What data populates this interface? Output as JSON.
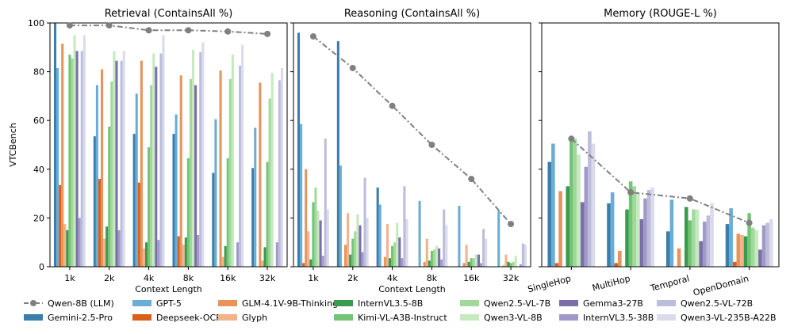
{
  "figure": {
    "ylabel": "VTCBench",
    "legend_entries": [
      {
        "name": "Qwen-8B (LLM)",
        "color": "#808080",
        "kind": "line"
      },
      {
        "name": "Gemini-2.5-Pro",
        "color": "#3b7dab"
      },
      {
        "name": "GPT-5",
        "color": "#6aaed6"
      },
      {
        "name": "Deepseek-OCR",
        "color": "#d95f1c"
      },
      {
        "name": "GLM-4.1V-9B-Thinking",
        "color": "#e8935a"
      },
      {
        "name": "Glyph",
        "color": "#f2b38a"
      },
      {
        "name": "InternVL3.5-8B",
        "color": "#3a9a4e"
      },
      {
        "name": "Kimi-VL-A3B-Instruct",
        "color": "#74c476"
      },
      {
        "name": "Qwen2.5-VL-7B",
        "color": "#a1d99b"
      },
      {
        "name": "Qwen3-VL-8B",
        "color": "#c7e9c0"
      },
      {
        "name": "Gemma3-27B",
        "color": "#7a6fa8"
      },
      {
        "name": "InternVL3.5-38B",
        "color": "#a19ac8"
      },
      {
        "name": "Qwen2.5-VL-72B",
        "color": "#bcbddc"
      },
      {
        "name": "Qwen3-VL-235B-A22B",
        "color": "#dadaeb"
      }
    ]
  },
  "chart_data": [
    {
      "type": "bar",
      "title": "Retrieval (ContainsAll %)",
      "xlabel": "Context Length",
      "ylabel": "VTCBench",
      "ylim": [
        0,
        100
      ],
      "yticks": [
        0,
        20,
        40,
        60,
        80,
        100
      ],
      "categories": [
        "1k",
        "2k",
        "4k",
        "8k",
        "16k",
        "32k"
      ],
      "line": {
        "name": "Qwen-8B (LLM)",
        "values": [
          99,
          99,
          97,
          97,
          96.5,
          95.5
        ]
      },
      "series": [
        {
          "name": "Gemini-2.5-Pro",
          "values": [
            100,
            53.5,
            54.5,
            54.5,
            38.5,
            40.5
          ]
        },
        {
          "name": "GPT-5",
          "values": [
            81.5,
            74.5,
            71,
            62.5,
            60.5,
            57
          ]
        },
        {
          "name": "Deepseek-OCR",
          "values": [
            33.5,
            36,
            34.5,
            12.5,
            0,
            0
          ]
        },
        {
          "name": "GLM-4.1V-9B-Thinking",
          "values": [
            91.5,
            81,
            84.5,
            78.5,
            80.5,
            75.5
          ]
        },
        {
          "name": "Glyph",
          "values": [
            17.5,
            11.5,
            7.5,
            9,
            4,
            2.5
          ]
        },
        {
          "name": "InternVL3.5-8B",
          "values": [
            15,
            16.5,
            10,
            12,
            8.5,
            8
          ]
        },
        {
          "name": "Kimi-VL-A3B-Instruct",
          "values": [
            87,
            57.5,
            49,
            44.5,
            44.5,
            43
          ]
        },
        {
          "name": "Qwen2.5-VL-7B",
          "values": [
            85.5,
            76,
            74.5,
            77,
            77,
            69
          ]
        },
        {
          "name": "Qwen3-VL-8B",
          "values": [
            95,
            88.5,
            87.5,
            89,
            87,
            79.5
          ]
        },
        {
          "name": "Gemma3-27B",
          "values": [
            88.5,
            84.5,
            82,
            74.5,
            0,
            0
          ]
        },
        {
          "name": "InternVL3.5-38B",
          "values": [
            20,
            15,
            11,
            13,
            10,
            10
          ]
        },
        {
          "name": "Qwen2.5-VL-72B",
          "values": [
            88.5,
            84.5,
            87.5,
            88,
            82.5,
            76.5
          ]
        },
        {
          "name": "Qwen3-VL-235B-A22B",
          "values": [
            95,
            88.5,
            95,
            92,
            91,
            81.5
          ]
        }
      ]
    },
    {
      "type": "bar",
      "title": "Reasoning (ContainsAll %)",
      "xlabel": "Context Length",
      "ylim": [
        0,
        100
      ],
      "categories": [
        "1k",
        "2k",
        "4k",
        "8k",
        "16k",
        "32k"
      ],
      "line": {
        "name": "Qwen-8B (LLM)",
        "values": [
          94.5,
          81.5,
          66,
          50,
          36,
          17.5
        ]
      },
      "series": [
        {
          "name": "Gemini-2.5-Pro",
          "values": [
            96,
            92.5,
            32.5,
            0,
            0,
            0
          ]
        },
        {
          "name": "GPT-5",
          "values": [
            58.5,
            41.5,
            25.5,
            27,
            25,
            23
          ]
        },
        {
          "name": "Deepseek-OCR",
          "values": [
            1.5,
            0,
            0,
            0,
            0,
            0
          ]
        },
        {
          "name": "GLM-4.1V-9B-Thinking",
          "values": [
            40,
            9,
            4,
            2,
            1.5,
            0.5
          ]
        },
        {
          "name": "Glyph",
          "values": [
            14.5,
            22,
            17.5,
            11.5,
            9,
            5
          ]
        },
        {
          "name": "InternVL3.5-8B",
          "values": [
            3,
            5,
            3.5,
            2.5,
            2,
            2
          ]
        },
        {
          "name": "Kimi-VL-A3B-Instruct",
          "values": [
            26.5,
            11.5,
            8.5,
            6.5,
            3.5,
            1.5
          ]
        },
        {
          "name": "Qwen2.5-VL-7B",
          "values": [
            32.5,
            14.5,
            10,
            7,
            3.5,
            2
          ]
        },
        {
          "name": "Qwen3-VL-8B",
          "values": [
            23,
            21.5,
            18,
            8.5,
            5,
            4.5
          ]
        },
        {
          "name": "Gemma3-27B",
          "values": [
            19,
            17,
            12,
            7.5,
            5,
            0
          ]
        },
        {
          "name": "InternVL3.5-38B",
          "values": [
            4.5,
            6,
            3.5,
            3,
            1.5,
            1
          ]
        },
        {
          "name": "Qwen2.5-VL-72B",
          "values": [
            52.5,
            36.5,
            33,
            23.5,
            15.5,
            9.5
          ]
        },
        {
          "name": "Qwen3-VL-235B-A22B",
          "values": [
            23.5,
            20,
            19.5,
            17,
            11.5,
            9
          ]
        }
      ]
    },
    {
      "type": "bar",
      "title": "Memory (ROUGE-L %)",
      "ylim": [
        0,
        100
      ],
      "categories": [
        "SingleHop",
        "MultiHop",
        "Temporal",
        "OpenDomain"
      ],
      "line": {
        "name": "Qwen-8B (LLM)",
        "values": [
          52.5,
          30.5,
          28,
          18
        ]
      },
      "series": [
        {
          "name": "Gemini-2.5-Pro",
          "values": [
            43,
            26,
            14.5,
            17.5
          ]
        },
        {
          "name": "GPT-5",
          "values": [
            50.5,
            30.5,
            27.5,
            24
          ]
        },
        {
          "name": "Deepseek-OCR",
          "values": [
            1.5,
            1.5,
            0,
            2
          ]
        },
        {
          "name": "GLM-4.1V-9B-Thinking",
          "values": [
            31,
            6.5,
            7.5,
            13.5
          ]
        },
        {
          "name": "Glyph",
          "values": [
            0,
            0,
            0,
            13
          ]
        },
        {
          "name": "InternVL3.5-8B",
          "values": [
            33,
            23.5,
            24.5,
            12.5
          ]
        },
        {
          "name": "Kimi-VL-A3B-Instruct",
          "values": [
            51.5,
            35,
            19,
            22
          ]
        },
        {
          "name": "Qwen2.5-VL-7B",
          "values": [
            52.5,
            33,
            23.5,
            16
          ]
        },
        {
          "name": "Qwen3-VL-8B",
          "values": [
            46,
            30,
            23.5,
            15
          ]
        },
        {
          "name": "Gemma3-27B",
          "values": [
            26.5,
            19.5,
            10.5,
            7
          ]
        },
        {
          "name": "InternVL3.5-38B",
          "values": [
            41,
            28,
            18.5,
            17
          ]
        },
        {
          "name": "Qwen2.5-VL-72B",
          "values": [
            55.5,
            31.5,
            21,
            18
          ]
        },
        {
          "name": "Qwen3-VL-235B-A22B",
          "values": [
            50.5,
            32.5,
            26,
            19.5
          ]
        }
      ]
    }
  ]
}
